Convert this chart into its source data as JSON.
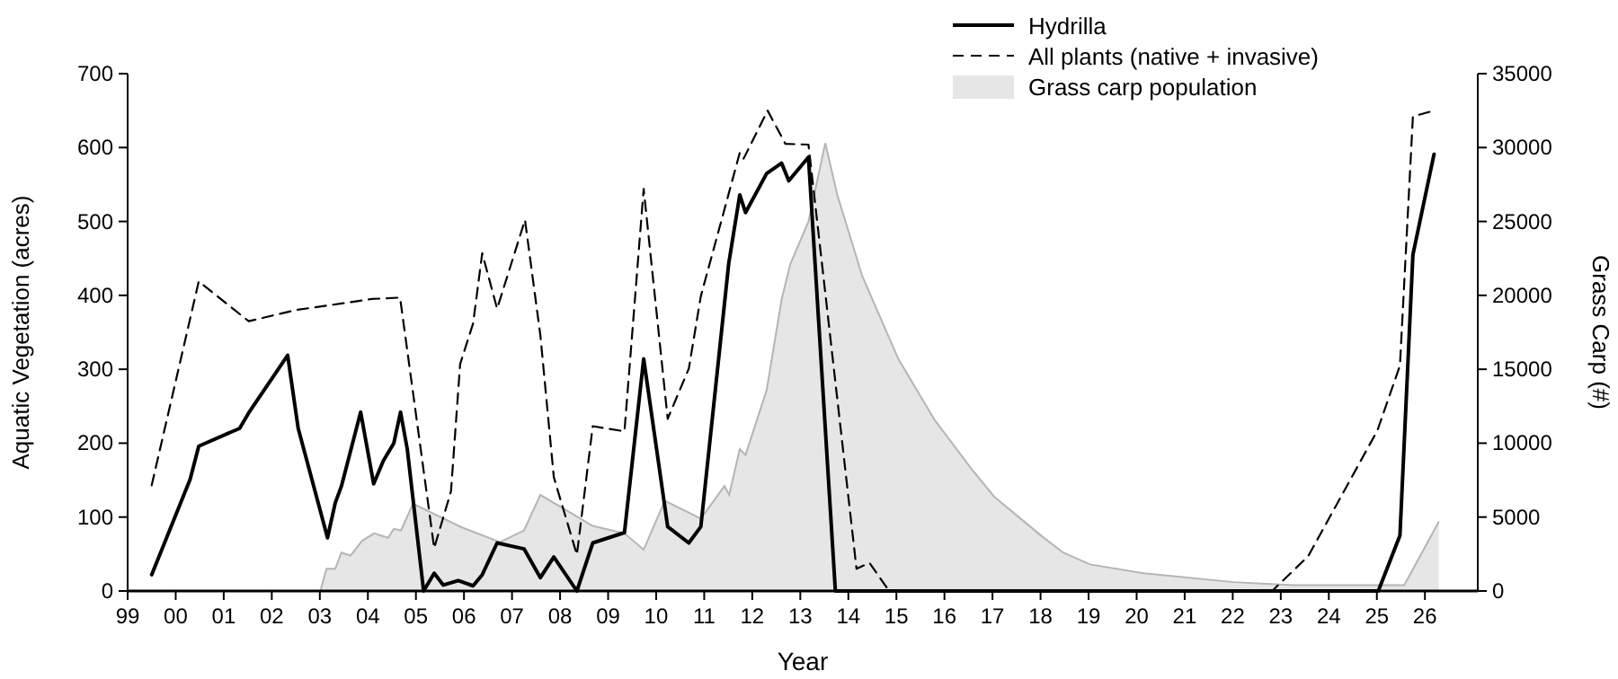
{
  "chart_data": {
    "type": "line",
    "xlabel": "Year",
    "ylabel": "Aquatic Vegetation (acres)",
    "y2label": "Grass Carp (#)",
    "xlim": [
      1999,
      2027.1
    ],
    "xticks": [
      {
        "value": 1999,
        "label": "99"
      },
      {
        "value": 2000,
        "label": "00"
      },
      {
        "value": 2001,
        "label": "01"
      },
      {
        "value": 2002,
        "label": "02"
      },
      {
        "value": 2003,
        "label": "03"
      },
      {
        "value": 2004,
        "label": "04"
      },
      {
        "value": 2005,
        "label": "05"
      },
      {
        "value": 2006,
        "label": "06"
      },
      {
        "value": 2007,
        "label": "07"
      },
      {
        "value": 2008,
        "label": "08"
      },
      {
        "value": 2009,
        "label": "09"
      },
      {
        "value": 2010,
        "label": "10"
      },
      {
        "value": 2011,
        "label": "11"
      },
      {
        "value": 2012,
        "label": "12"
      },
      {
        "value": 2013,
        "label": "13"
      },
      {
        "value": 2014,
        "label": "14"
      },
      {
        "value": 2015,
        "label": "15"
      },
      {
        "value": 2016,
        "label": "16"
      },
      {
        "value": 2017,
        "label": "17"
      },
      {
        "value": 2018,
        "label": "18"
      },
      {
        "value": 2019,
        "label": "19"
      },
      {
        "value": 2020,
        "label": "20"
      },
      {
        "value": 2021,
        "label": "21"
      },
      {
        "value": 2022,
        "label": "22"
      },
      {
        "value": 2023,
        "label": "23"
      },
      {
        "value": 2024,
        "label": "24"
      },
      {
        "value": 2025,
        "label": "25"
      },
      {
        "value": 2026,
        "label": "26"
      }
    ],
    "ylim": [
      0,
      700
    ],
    "yticks": [
      0,
      100,
      200,
      300,
      400,
      500,
      600,
      700
    ],
    "y2lim": [
      0,
      35000
    ],
    "y2ticks": [
      0,
      5000,
      10000,
      15000,
      20000,
      25000,
      30000,
      35000
    ],
    "grid": false,
    "legend": "top right",
    "marker": "none",
    "series": [
      {
        "name": "Grass carp population",
        "type": "area",
        "axis": "y2",
        "color": "#e6e6e6",
        "x": [
          2003.01,
          2003.14,
          2003.32,
          2003.45,
          2003.64,
          2003.88,
          2004.13,
          2004.42,
          2004.54,
          2004.69,
          2004.94,
          2005.96,
          2006.75,
          2007.25,
          2007.59,
          2008.68,
          2009.34,
          2009.74,
          2010.18,
          2010.93,
          2011.42,
          2011.52,
          2011.74,
          2011.86,
          2012.3,
          2012.61,
          2012.79,
          2013.17,
          2013.52,
          2013.77,
          2014.29,
          2015.04,
          2015.79,
          2016.53,
          2017.03,
          2018.03,
          2018.47,
          2019.03,
          2020.15,
          2022.02,
          2023.26,
          2025.57,
          2026.29
        ],
        "values": [
          0,
          1500,
          1500,
          2600,
          2400,
          3400,
          3900,
          3600,
          4200,
          4100,
          5900,
          4300,
          3300,
          4100,
          6500,
          4400,
          3900,
          2800,
          6100,
          4900,
          7100,
          6500,
          9600,
          9200,
          13600,
          19700,
          22100,
          25000,
          30300,
          26800,
          21300,
          15700,
          11600,
          8400,
          6400,
          3700,
          2600,
          1800,
          1200,
          600,
          400,
          400,
          4700
        ]
      },
      {
        "name": "Hydrilla",
        "line_style": "solid",
        "color": "#000000",
        "x": [
          1999.5,
          2000.3,
          2000.48,
          2001.33,
          2001.52,
          2002.33,
          2002.55,
          2003.16,
          2003.32,
          2003.45,
          2003.85,
          2004.12,
          2004.32,
          2004.54,
          2004.68,
          2004.82,
          2005.16,
          2005.38,
          2005.57,
          2005.88,
          2006.19,
          2006.38,
          2006.69,
          2007.25,
          2007.59,
          2007.87,
          2008.35,
          2008.68,
          2009.34,
          2009.74,
          2010.24,
          2010.68,
          2010.93,
          2011.51,
          2011.74,
          2011.86,
          2012.3,
          2012.61,
          2012.76,
          2013.17,
          2013.73,
          2025.03,
          2025.48,
          2025.75,
          2026.19
        ],
        "values": [
          22,
          151,
          196,
          220,
          241,
          319,
          220,
          72,
          119,
          142,
          242,
          145,
          176,
          200,
          242,
          192,
          0,
          24,
          8,
          14,
          7,
          22,
          65,
          57,
          18,
          46,
          0,
          65,
          79,
          314,
          87,
          65,
          87,
          443,
          536,
          512,
          565,
          579,
          555,
          587,
          0,
          0,
          75,
          455,
          591
        ]
      },
      {
        "name": "All plants (native + invasive)",
        "line_style": "dashed",
        "color": "#000000",
        "x": [
          1999.5,
          2000.48,
          2001.52,
          2002.49,
          2003.45,
          2004.07,
          2004.67,
          2005.38,
          2005.73,
          2005.92,
          2006.19,
          2006.38,
          2006.69,
          2007.27,
          2007.59,
          2007.87,
          2008.35,
          2008.68,
          2009.34,
          2009.74,
          2010.24,
          2010.68,
          2010.93,
          2011.42,
          2011.74,
          2011.82,
          2012.32,
          2012.69,
          2013.17,
          2014.17,
          2014.44,
          2014.85,
          2022.82,
          2023.57,
          2025.01,
          2025.48,
          2025.75,
          2026.19
        ],
        "values": [
          143,
          419,
          365,
          380,
          389,
          395,
          397,
          58,
          135,
          307,
          362,
          457,
          382,
          502,
          346,
          154,
          49,
          223,
          216,
          544,
          233,
          301,
          399,
          516,
          593,
          585,
          650,
          605,
          604,
          30,
          38,
          0,
          0,
          47,
          217,
          305,
          642,
          650
        ]
      }
    ]
  }
}
